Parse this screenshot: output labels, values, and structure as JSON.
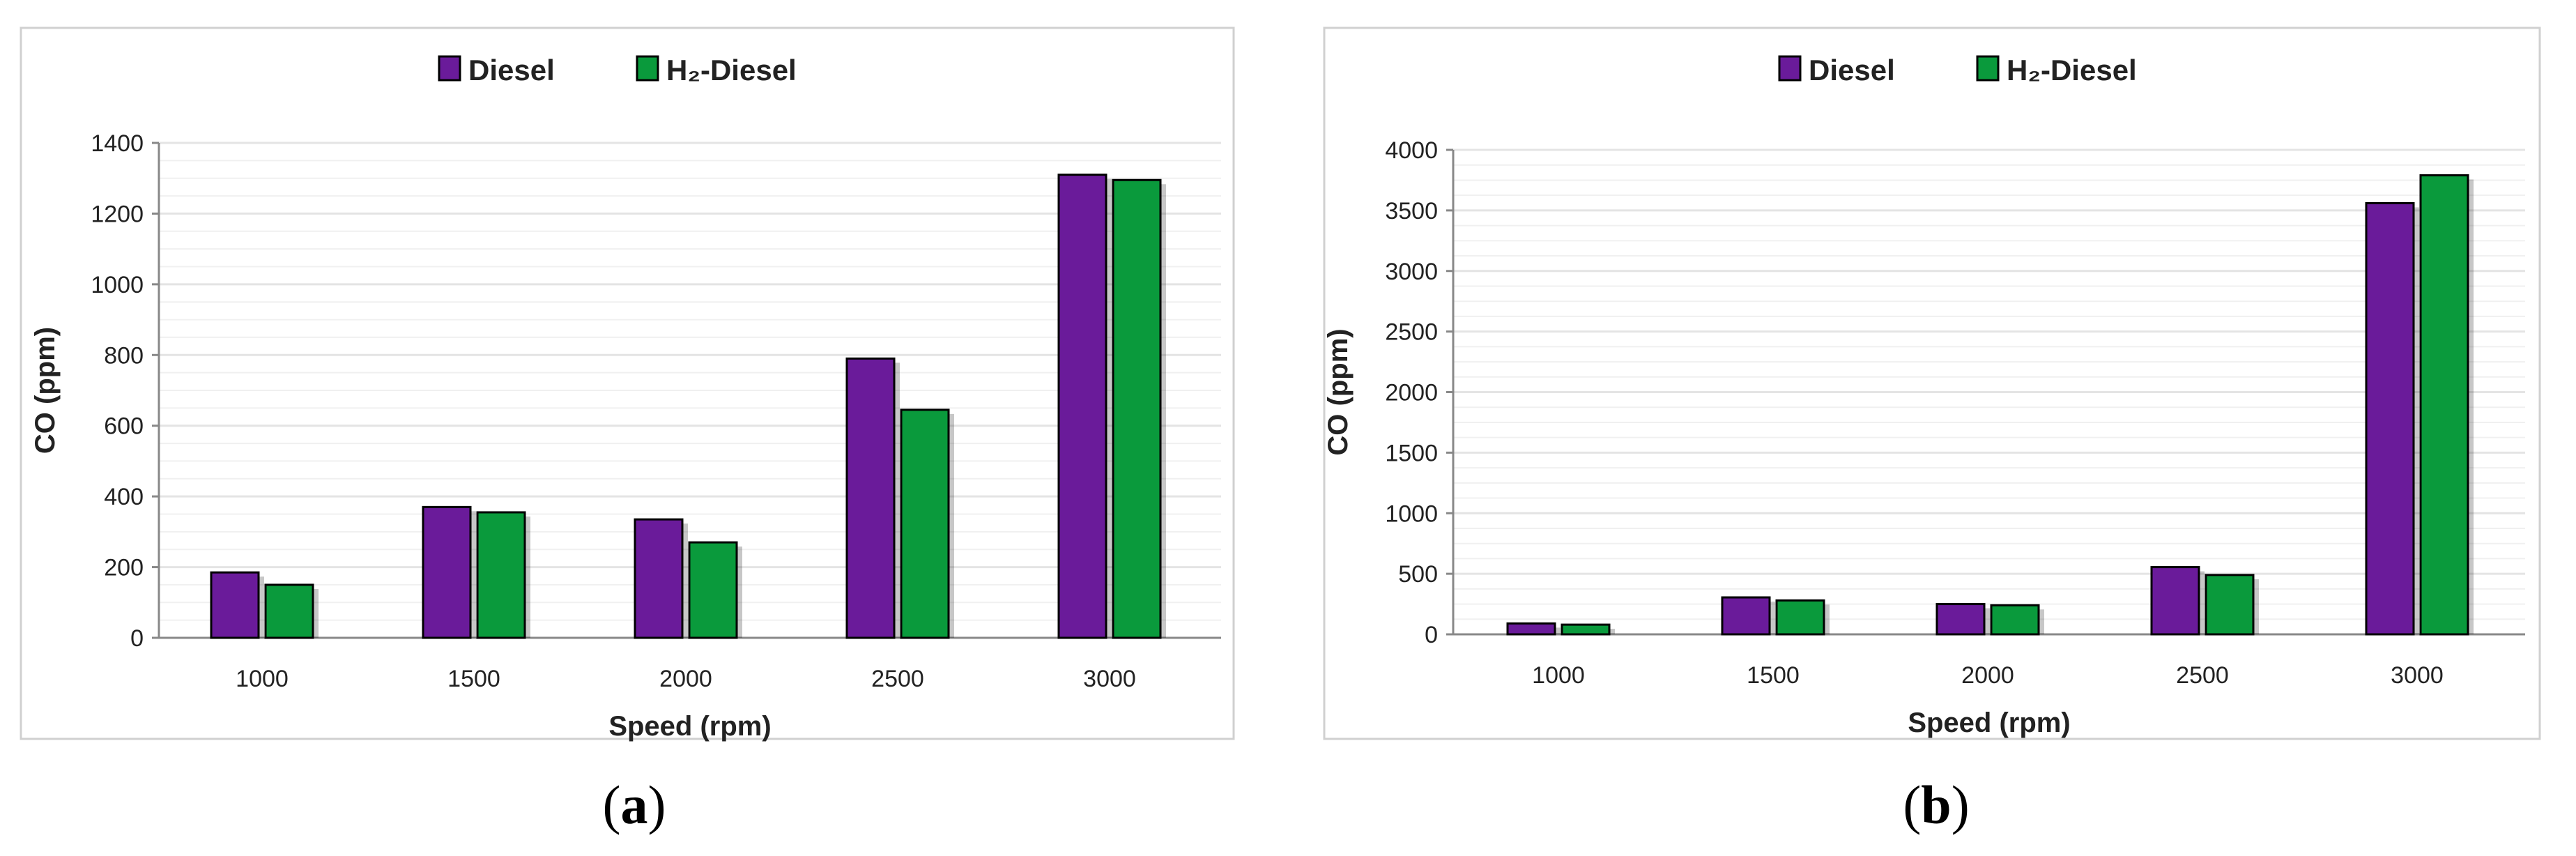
{
  "colors": {
    "diesel": "#6a1b9a",
    "h2diesel": "#0a9a3c",
    "grid": "#e4e4e4",
    "frame": "#d0d0d0"
  },
  "chart_data": [
    {
      "type": "bar",
      "panel_label": "a",
      "categories": [
        "1000",
        "1500",
        "2000",
        "2500",
        "3000"
      ],
      "series": [
        {
          "name": "Diesel",
          "values": [
            185,
            370,
            335,
            790,
            1310
          ]
        },
        {
          "name": "H₂-Diesel",
          "values": [
            150,
            355,
            270,
            645,
            1295
          ]
        }
      ],
      "xlabel": "Speed (rpm)",
      "ylabel": "CO (ppm)",
      "ylim": [
        0,
        1400
      ],
      "yticks": [
        0,
        200,
        400,
        600,
        800,
        1000,
        1200,
        1400
      ],
      "grid": true,
      "legend": "top-center"
    },
    {
      "type": "bar",
      "panel_label": "b",
      "categories": [
        "1000",
        "1500",
        "2000",
        "2500",
        "3000"
      ],
      "series": [
        {
          "name": "Diesel",
          "values": [
            90,
            305,
            250,
            555,
            3560
          ]
        },
        {
          "name": "H₂-Diesel",
          "values": [
            80,
            280,
            240,
            490,
            3790
          ]
        }
      ],
      "xlabel": "Speed (rpm)",
      "ylabel": "CO (ppm)",
      "ylim": [
        0,
        4000
      ],
      "yticks": [
        0,
        500,
        1000,
        1500,
        2000,
        2500,
        3000,
        3500,
        4000
      ],
      "grid": true,
      "legend": "top-center"
    }
  ]
}
